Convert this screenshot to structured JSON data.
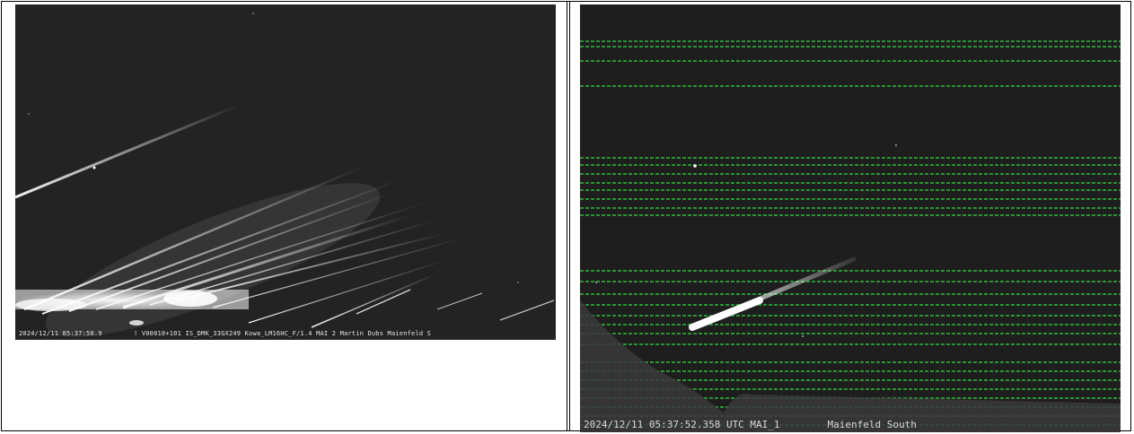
{
  "panels": [
    {
      "id": "left",
      "caption": "2024/12/11 05:37:50.9        ! V00010+101 IS_DMK_33GX249 Kowa_LM16HC_F/1.4 MAI 2 Martin Dubs Maienfeld S"
    },
    {
      "id": "right",
      "caption": "2024/12/11 05:37:52.358 UTC MAI_1        Maienfeld South"
    }
  ],
  "colors": {
    "page_bg": "#ffffff",
    "frame": "#000000",
    "left_sky": "#232323",
    "right_sky": "#1e1e1e",
    "noise_green": "#2ea83a",
    "meteor": "#ffffff"
  }
}
